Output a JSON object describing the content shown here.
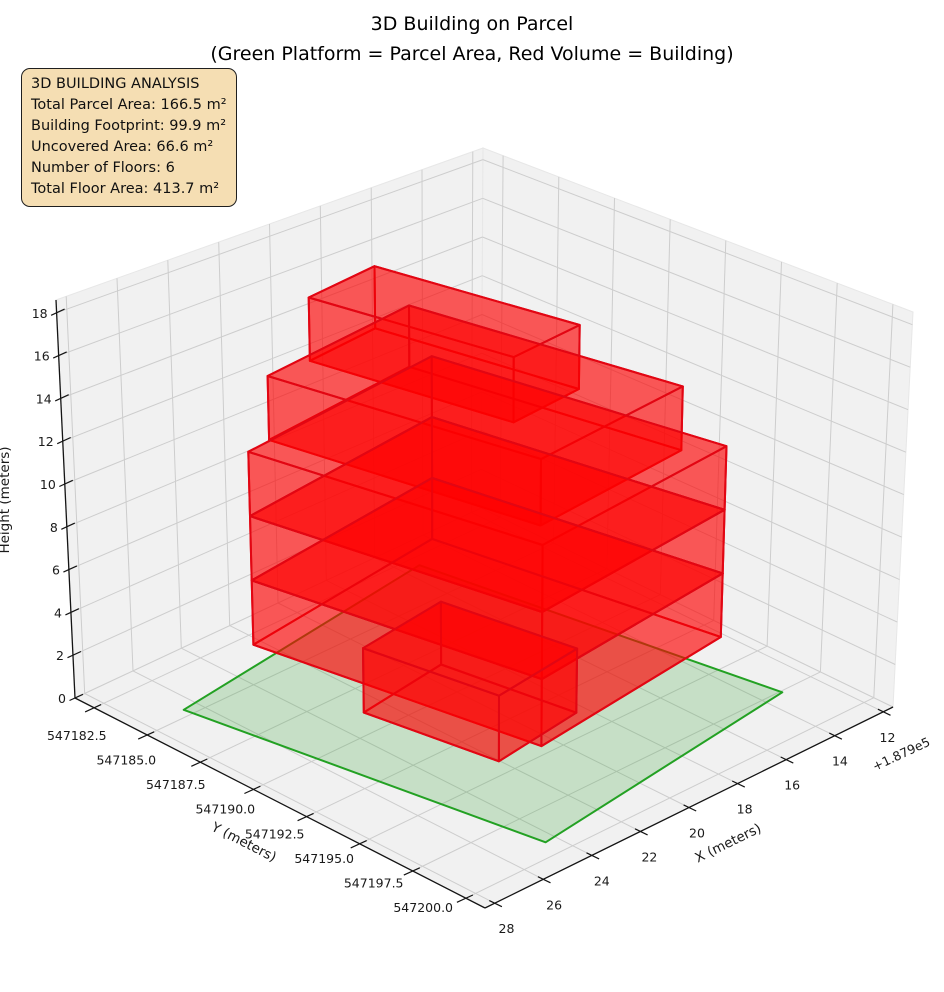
{
  "title": {
    "line1": "3D Building on Parcel",
    "line2": "(Green Platform = Parcel Area, Red Volume = Building)"
  },
  "overlay": {
    "title": "3D BUILDING ANALYSIS",
    "lines": [
      "Total Parcel Area: 166.5 m²",
      "Building Footprint: 99.9 m²",
      "Uncovered Area: 66.6 m²",
      "Number of Floors: 6",
      "Total Floor Area: 413.7 m²"
    ]
  },
  "chart_data": {
    "type": "3d_building_plot",
    "title": "3D Building on Parcel",
    "subtitle": "(Green Platform = Parcel Area, Red Volume = Building)",
    "xlabel": "X (meters)",
    "ylabel": "Y (meters)",
    "zlabel": "Height (meters)",
    "x_offset_text": "+1.879e5",
    "x_ticks": [
      12,
      14,
      16,
      18,
      20,
      22,
      24,
      26,
      28
    ],
    "y_ticks": [
      547182.5,
      547185.0,
      547187.5,
      547190.0,
      547192.5,
      547195.0,
      547197.5,
      547200.0
    ],
    "z_ticks": [
      0,
      2,
      4,
      6,
      8,
      10,
      12,
      14,
      16,
      18
    ],
    "xlim": [
      11.6,
      28.4
    ],
    "ylim": [
      547181.6,
      547200.9
    ],
    "zlim": [
      0,
      18.6
    ],
    "grid": true,
    "stats": {
      "total_parcel_area_m2": 166.5,
      "building_footprint_m2": 99.9,
      "uncovered_area_m2": 66.6,
      "number_of_floors": 6,
      "total_floor_area_m2": 413.7
    },
    "rotation_deg": 8.3,
    "parcel": {
      "name": "parcel-platform",
      "cx": 19.9,
      "cy": 547191.1,
      "width": 11.3,
      "depth": 14.75,
      "z": 0,
      "area_m2": 166.5
    },
    "floors": [
      {
        "name": "floor-6",
        "cx": 20.3,
        "cy": 547189.8,
        "width": 3.0,
        "depth": 8.0,
        "z0": 15,
        "z1": 18
      },
      {
        "name": "floor-5",
        "cx": 20.0,
        "cy": 547190.85,
        "width": 6.5,
        "depth": 10.75,
        "z0": 12,
        "z1": 15
      },
      {
        "name": "floor-4",
        "cx": 19.95,
        "cy": 547191.35,
        "width": 8.5,
        "depth": 11.65,
        "z0": 9,
        "z1": 12
      },
      {
        "name": "floor-3",
        "cx": 19.95,
        "cy": 547191.35,
        "width": 8.5,
        "depth": 11.65,
        "z0": 6,
        "z1": 9
      },
      {
        "name": "floor-2",
        "cx": 19.95,
        "cy": 547191.35,
        "width": 8.5,
        "depth": 11.65,
        "z0": 3,
        "z1": 6
      },
      {
        "name": "floor-1",
        "cx": 20.6,
        "cy": 547191.3,
        "width": 3.7,
        "depth": 5.5,
        "z0": 0,
        "z1": 3
      }
    ],
    "colors": {
      "building_face": "rgba(255,0,0,0.40)",
      "building_edge": "#e20613",
      "parcel_face": "rgba(44,160,44,0.22)",
      "parcel_edge": "#23a123",
      "pane": "#f1f1f1",
      "pane_edge": "#e7e7e7",
      "grid": "#cdcdcd",
      "spine": "#141414",
      "text": "#1a1a1a",
      "overlay_bg": "#f5deb3",
      "figure_bg": "#ffffff"
    }
  }
}
